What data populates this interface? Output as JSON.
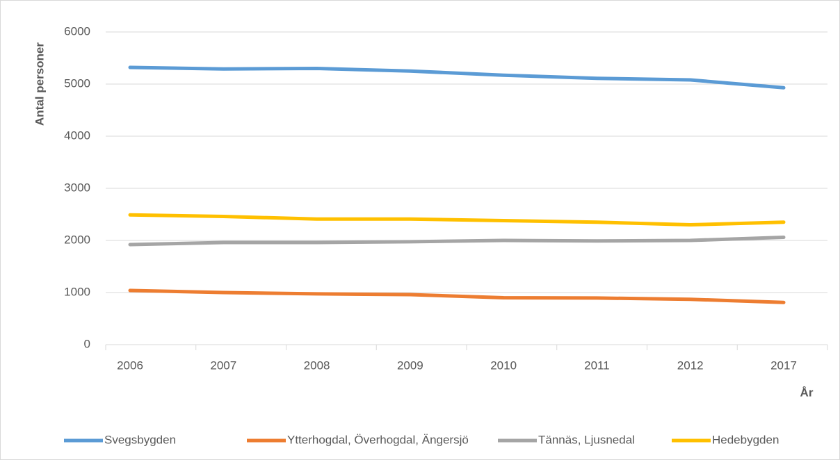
{
  "chart_data": {
    "type": "line",
    "categories": [
      "2006",
      "2007",
      "2008",
      "2009",
      "2010",
      "2011",
      "2012",
      "2017"
    ],
    "series": [
      {
        "name": "Svegsbygden",
        "color": "#5b9bd5",
        "values": [
          5320,
          5290,
          5300,
          5250,
          5170,
          5110,
          5080,
          4930
        ]
      },
      {
        "name": "Ytterhogdal, Överhogdal, Ängersjö",
        "color": "#ed7d31",
        "values": [
          1040,
          1000,
          975,
          960,
          900,
          895,
          870,
          810
        ]
      },
      {
        "name": "Tännäs, Ljusnedal",
        "color": "#a5a5a5",
        "values": [
          1920,
          1960,
          1960,
          1975,
          2000,
          1990,
          2000,
          2060
        ]
      },
      {
        "name": "Hedebygden",
        "color": "#ffc000",
        "values": [
          2490,
          2460,
          2410,
          2410,
          2380,
          2350,
          2300,
          2350
        ]
      }
    ],
    "ylim": [
      0,
      6000
    ],
    "yticks": [
      0,
      1000,
      2000,
      3000,
      4000,
      5000,
      6000
    ],
    "grid": true,
    "y_label": "Antal personer",
    "x_label": "År",
    "legend": "bottom"
  }
}
